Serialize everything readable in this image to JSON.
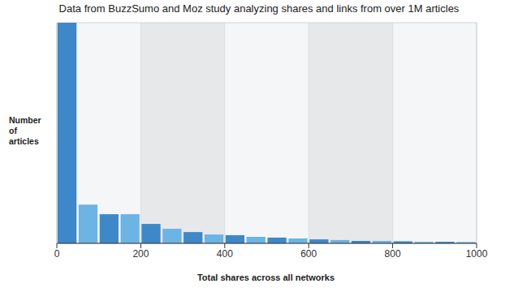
{
  "chart_data": {
    "type": "histogram",
    "title": "Data from BuzzSumo and Moz study analyzing shares and links from over 1M articles",
    "x_label": "Total shares across all networks",
    "y_label": "Number of articles",
    "bins": [
      0,
      50,
      100,
      150,
      200,
      250,
      300,
      350,
      400,
      450,
      500,
      550,
      600,
      650,
      700,
      750,
      800,
      850,
      900,
      950,
      1000
    ],
    "values": [
      100,
      17.6,
      13.2,
      13.2,
      8.8,
      6.6,
      5.1,
      4.0,
      3.7,
      2.9,
      2.6,
      2.2,
      1.8,
      1.5,
      1.1,
      1.1,
      0.9,
      0.7,
      0.7,
      0.6
    ],
    "colors": [
      "#3d88c8",
      "#6cb4e4",
      "#3d88c8",
      "#6cb4e4",
      "#3d88c8",
      "#6cb4e4",
      "#3d88c8",
      "#6cb4e4",
      "#3d88c8",
      "#6cb4e4",
      "#3d88c8",
      "#6cb4e4",
      "#3d88c8",
      "#6cb4e4",
      "#3d88c8",
      "#6cb4e4",
      "#3d88c8",
      "#6cb4e4",
      "#3d88c8",
      "#6cb4e4"
    ],
    "xlim": [
      0,
      1000
    ],
    "xticks": [
      0,
      200,
      400,
      600,
      800,
      1000
    ],
    "ylim": [
      0,
      100
    ],
    "grid": true,
    "tick_labels": "x"
  }
}
